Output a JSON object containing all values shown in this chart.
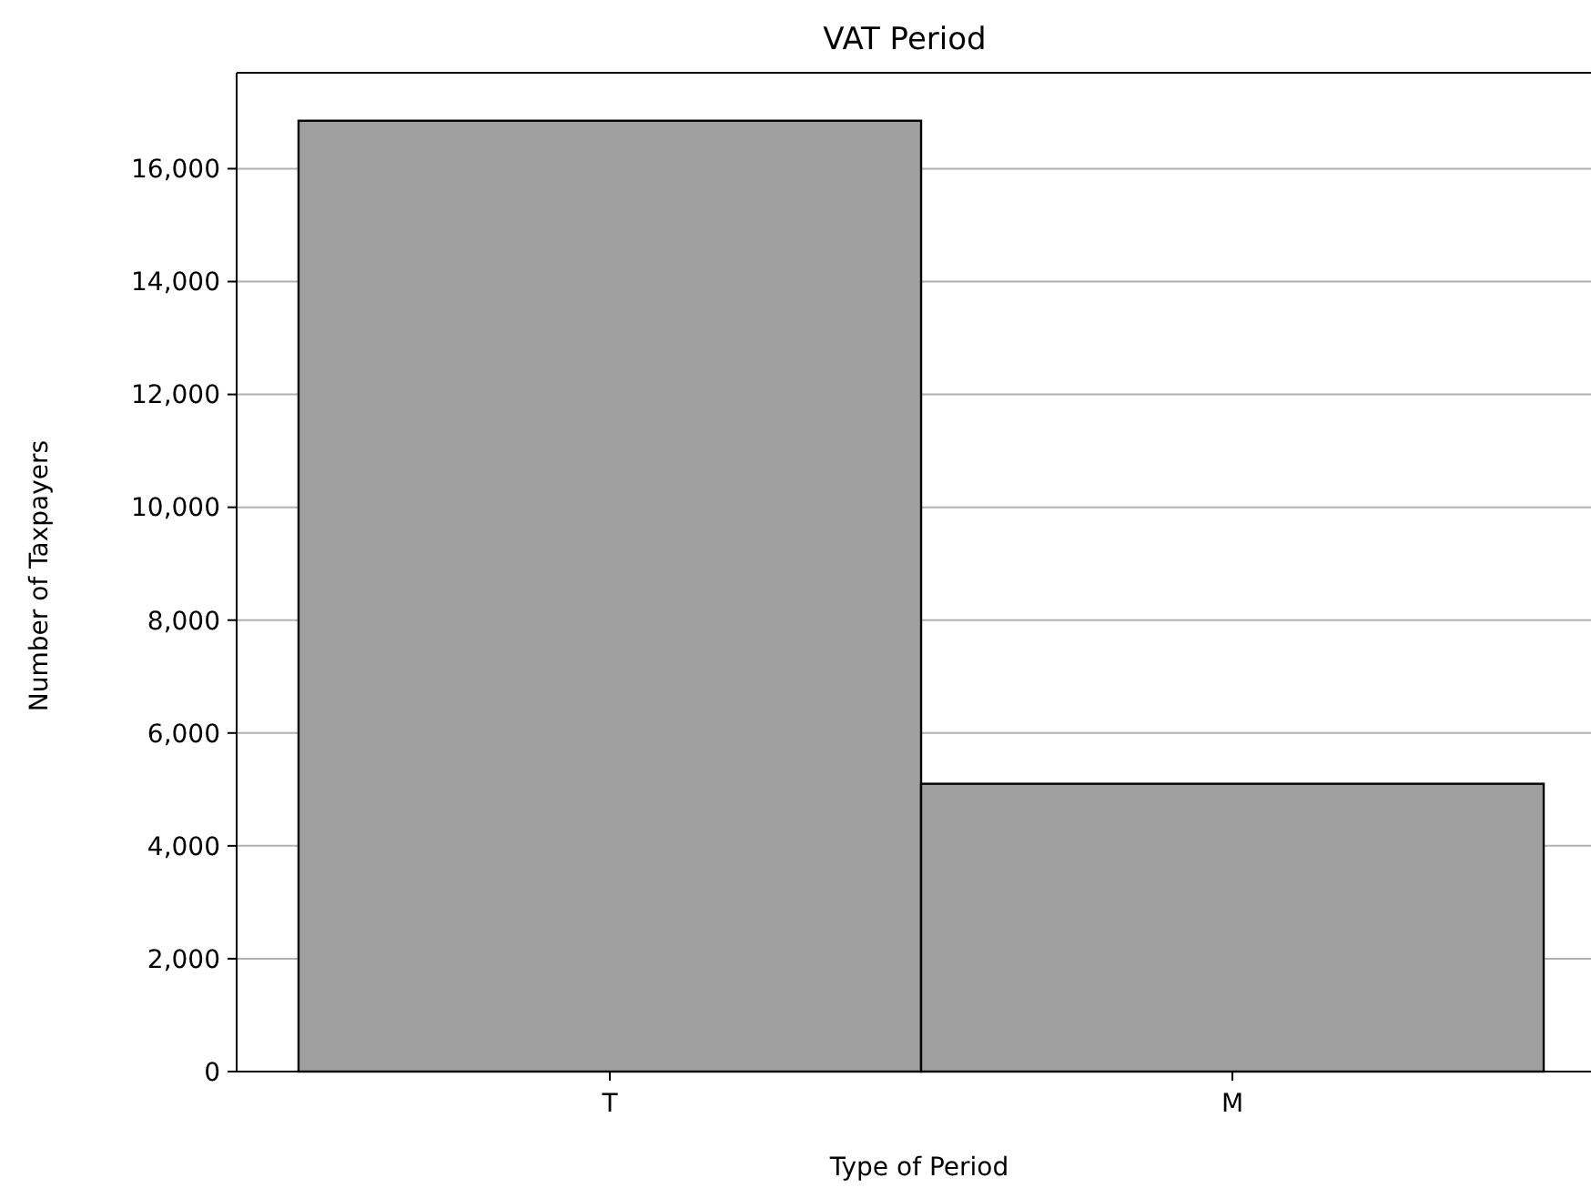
{
  "chart_data": {
    "type": "bar",
    "title": "VAT Period",
    "xlabel": "Type of Period",
    "ylabel": "Number of Taxpayers",
    "categories": [
      "T",
      "M"
    ],
    "values": [
      16850,
      5100
    ],
    "color": "#a0a0a0",
    "ylim": [
      0,
      17700
    ],
    "yticks": [
      {
        "value": 0,
        "label": "0"
      },
      {
        "value": 2000,
        "label": "2,000"
      },
      {
        "value": 4000,
        "label": "4,000"
      },
      {
        "value": 6000,
        "label": "6,000"
      },
      {
        "value": 8000,
        "label": "8,000"
      },
      {
        "value": 10000,
        "label": "10,000"
      },
      {
        "value": 12000,
        "label": "12,000"
      },
      {
        "value": 14000,
        "label": "14,000"
      },
      {
        "value": 16000,
        "label": "16,000"
      }
    ],
    "grid": "y"
  }
}
